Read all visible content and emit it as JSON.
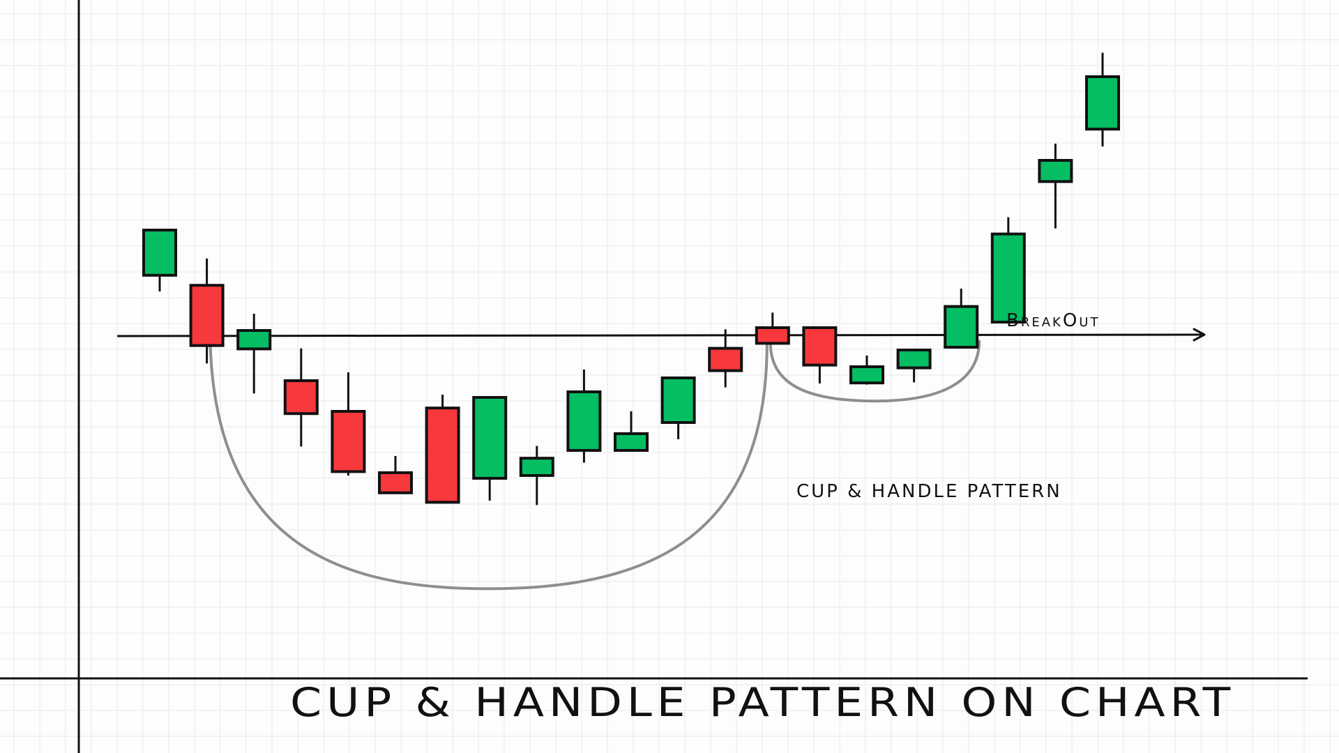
{
  "colors": {
    "bullish": "#05bd62",
    "bearish": "#f7383c",
    "outline": "#111111",
    "grid": "#e3eae7",
    "curve": "#8e8e8e",
    "axis": "#111111"
  },
  "chart_data": {
    "type": "candlestick",
    "title": "CUP & HANDLE PATTERN ON CHART",
    "xlabel": "",
    "ylabel": "",
    "grid": true,
    "ylim": [
      0,
      100
    ],
    "resistance_level": 60.5,
    "breakout_label": "BreakOut",
    "annotation": "CUP & HANDLE PATTERN",
    "candles": [
      {
        "open": 71.4,
        "close": 79.5,
        "high": 79.5,
        "low": 68.5
      },
      {
        "open": 69.6,
        "close": 58.8,
        "high": 74.4,
        "low": 55.6
      },
      {
        "open": 58.2,
        "close": 61.5,
        "high": 64.5,
        "low": 50.2
      },
      {
        "open": 52.5,
        "close": 46.6,
        "high": 58.3,
        "low": 40.7
      },
      {
        "open": 47.0,
        "close": 36.2,
        "high": 54.0,
        "low": 35.5
      },
      {
        "open": 36.0,
        "close": 32.4,
        "high": 39.0,
        "low": 32.4
      },
      {
        "open": 47.6,
        "close": 30.7,
        "high": 50.0,
        "low": 30.7
      },
      {
        "open": 35.0,
        "close": 49.5,
        "high": 49.5,
        "low": 31.0
      },
      {
        "open": 35.5,
        "close": 38.6,
        "high": 40.8,
        "low": 30.2
      },
      {
        "open": 40.0,
        "close": 50.5,
        "high": 54.5,
        "low": 37.8
      },
      {
        "open": 40.0,
        "close": 43.0,
        "high": 47.0,
        "low": 40.0
      },
      {
        "open": 45.0,
        "close": 53.0,
        "high": 53.0,
        "low": 42.0
      },
      {
        "open": 58.3,
        "close": 54.3,
        "high": 61.7,
        "low": 51.3
      },
      {
        "open": 62.0,
        "close": 59.2,
        "high": 64.7,
        "low": 59.2
      },
      {
        "open": 62.0,
        "close": 55.3,
        "high": 62.0,
        "low": 52.0
      },
      {
        "open": 52.1,
        "close": 55.0,
        "high": 57.0,
        "low": 51.8
      },
      {
        "open": 54.8,
        "close": 58.0,
        "high": 58.0,
        "low": 52.2
      },
      {
        "open": 58.5,
        "close": 65.8,
        "high": 69.0,
        "low": 58.5
      },
      {
        "open": 63.0,
        "close": 78.8,
        "high": 81.8,
        "low": 63.0
      },
      {
        "open": 88.2,
        "close": 92.0,
        "high": 95.0,
        "low": 79.8
      },
      {
        "open": 97.6,
        "close": 107.0,
        "high": 111.3,
        "low": 94.5
      }
    ]
  }
}
